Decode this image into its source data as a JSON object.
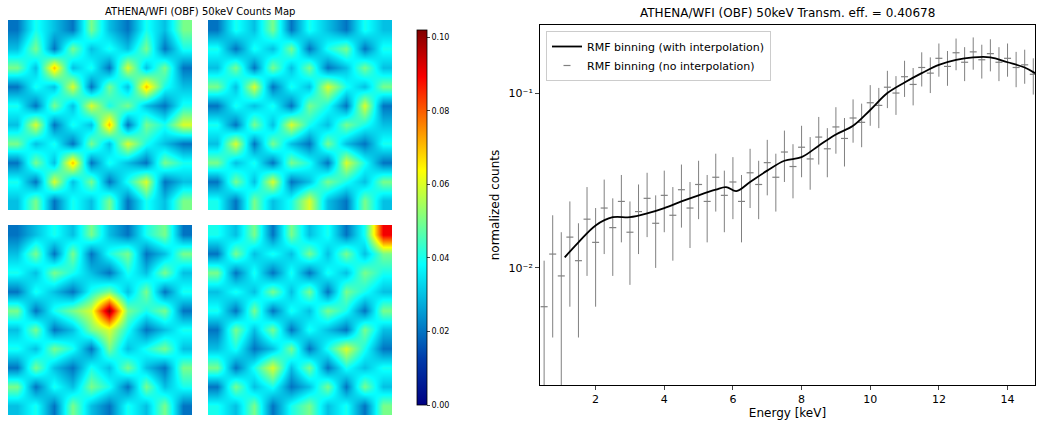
{
  "chart_data": [
    {
      "type": "heatmap",
      "title": "ATHENA/WFI (OBF) 50keV Counts Map",
      "color": "Jet",
      "tick_labels": false,
      "zlim": [
        0,
        0.102
      ],
      "colorbar_ticks": [
        {
          "value": 0,
          "label": "0.00"
        },
        {
          "value": 0.02,
          "label": "0.02"
        },
        {
          "value": 0.04,
          "label": "0.04"
        },
        {
          "value": 0.06,
          "label": "0.06"
        },
        {
          "value": 0.08,
          "label": "0.08"
        },
        {
          "value": 0.1,
          "label": "0.10"
        }
      ],
      "panels": [
        [
          [
            0.03,
            0.05,
            0.02,
            0.04,
            0.03,
            0.05,
            0.02,
            0.04,
            0.03,
            0.05
          ],
          [
            0.04,
            0.02,
            0.06,
            0.03,
            0.05,
            0.02,
            0.04,
            0.06,
            0.02,
            0.03
          ],
          [
            0.02,
            0.05,
            0.03,
            0.07,
            0.02,
            0.04,
            0.03,
            0.02,
            0.05,
            0.04
          ],
          [
            0.05,
            0.03,
            0.04,
            0.02,
            0.05,
            0.03,
            0.06,
            0.04,
            0.03,
            0.02
          ],
          [
            0.03,
            0.06,
            0.02,
            0.04,
            0.03,
            0.07,
            0.02,
            0.05,
            0.04,
            0.06
          ],
          [
            0.04,
            0.02,
            0.05,
            0.03,
            0.06,
            0.04,
            0.05,
            0.03,
            0.02,
            0.04
          ],
          [
            0.02,
            0.04,
            0.03,
            0.06,
            0.02,
            0.05,
            0.03,
            0.07,
            0.04,
            0.03
          ],
          [
            0.05,
            0.03,
            0.07,
            0.03,
            0.04,
            0.02,
            0.06,
            0.03,
            0.05,
            0.02
          ],
          [
            0.03,
            0.05,
            0.02,
            0.05,
            0.03,
            0.04,
            0.03,
            0.05,
            0.02,
            0.04
          ],
          [
            0.02,
            0.04,
            0.03,
            0.02,
            0.05,
            0.03,
            0.02,
            0.04,
            0.03,
            0.05
          ]
        ],
        [
          [
            0.04,
            0.02,
            0.05,
            0.03,
            0.04,
            0.06,
            0.03,
            0.02,
            0.05,
            0.03
          ],
          [
            0.02,
            0.05,
            0.03,
            0.06,
            0.02,
            0.03,
            0.05,
            0.04,
            0.03,
            0.05
          ],
          [
            0.05,
            0.03,
            0.04,
            0.02,
            0.05,
            0.04,
            0.02,
            0.06,
            0.04,
            0.02
          ],
          [
            0.03,
            0.06,
            0.02,
            0.05,
            0.03,
            0.02,
            0.05,
            0.03,
            0.02,
            0.04
          ],
          [
            0.04,
            0.02,
            0.05,
            0.03,
            0.06,
            0.04,
            0.03,
            0.05,
            0.04,
            0.03
          ],
          [
            0.02,
            0.04,
            0.03,
            0.04,
            0.02,
            0.05,
            0.04,
            0.02,
            0.06,
            0.02
          ],
          [
            0.05,
            0.03,
            0.06,
            0.02,
            0.04,
            0.03,
            0.06,
            0.04,
            0.03,
            0.05
          ],
          [
            0.03,
            0.05,
            0.02,
            0.05,
            0.03,
            0.05,
            0.02,
            0.03,
            0.05,
            0.03
          ],
          [
            0.04,
            0.02,
            0.04,
            0.03,
            0.05,
            0.02,
            0.04,
            0.05,
            0.02,
            0.04
          ],
          [
            0.02,
            0.04,
            0.03,
            0.05,
            0.02,
            0.04,
            0.03,
            0.02,
            0.04,
            0.03
          ]
        ],
        [
          [
            0.03,
            0.04,
            0.02,
            0.05,
            0.03,
            0.02,
            0.04,
            0.03,
            0.05,
            0.02
          ],
          [
            0.05,
            0.02,
            0.04,
            0.03,
            0.05,
            0.04,
            0.02,
            0.05,
            0.03,
            0.04
          ],
          [
            0.02,
            0.05,
            0.03,
            0.02,
            0.04,
            0.03,
            0.05,
            0.03,
            0.02,
            0.05
          ],
          [
            0.04,
            0.03,
            0.05,
            0.04,
            0.02,
            0.05,
            0.03,
            0.04,
            0.05,
            0.03
          ],
          [
            0.03,
            0.05,
            0.02,
            0.03,
            0.05,
            0.06,
            0.04,
            0.02,
            0.03,
            0.04
          ],
          [
            0.05,
            0.02,
            0.04,
            0.05,
            0.06,
            0.1,
            0.05,
            0.04,
            0.05,
            0.02
          ],
          [
            0.02,
            0.04,
            0.03,
            0.02,
            0.04,
            0.05,
            0.03,
            0.05,
            0.02,
            0.04
          ],
          [
            0.04,
            0.03,
            0.05,
            0.04,
            0.03,
            0.02,
            0.04,
            0.03,
            0.05,
            0.03
          ],
          [
            0.03,
            0.05,
            0.02,
            0.05,
            0.02,
            0.04,
            0.05,
            0.02,
            0.03,
            0.05
          ],
          [
            0.02,
            0.03,
            0.04,
            0.03,
            0.05,
            0.03,
            0.02,
            0.04,
            0.05,
            0.02
          ]
        ],
        [
          [
            0.04,
            0.03,
            0.05,
            0.02,
            0.04,
            0.05,
            0.03,
            0.04,
            0.02,
            0.05
          ],
          [
            0.02,
            0.05,
            0.03,
            0.04,
            0.02,
            0.03,
            0.05,
            0.02,
            0.05,
            0.03
          ],
          [
            0.05,
            0.02,
            0.04,
            0.06,
            0.03,
            0.05,
            0.02,
            0.04,
            0.03,
            0.04
          ],
          [
            0.03,
            0.04,
            0.02,
            0.03,
            0.05,
            0.02,
            0.04,
            0.06,
            0.04,
            0.02
          ],
          [
            0.02,
            0.05,
            0.03,
            0.05,
            0.02,
            0.04,
            0.03,
            0.02,
            0.05,
            0.03
          ],
          [
            0.04,
            0.02,
            0.05,
            0.02,
            0.04,
            0.03,
            0.05,
            0.04,
            0.02,
            0.05
          ],
          [
            0.03,
            0.04,
            0.03,
            0.05,
            0.03,
            0.05,
            0.02,
            0.05,
            0.04,
            0.03
          ],
          [
            0.05,
            0.02,
            0.04,
            0.02,
            0.04,
            0.02,
            0.04,
            0.03,
            0.05,
            0.04
          ],
          [
            0.02,
            0.05,
            0.03,
            0.04,
            0.03,
            0.05,
            0.03,
            0.05,
            0.03,
            0.05
          ],
          [
            0.04,
            0.03,
            0.05,
            0.02,
            0.05,
            0.03,
            0.04,
            0.02,
            0.04,
            0.09
          ]
        ]
      ]
    },
    {
      "type": "line",
      "title": "ATHENA/WFI (OBF) 50keV Transm. eff. = 0.40678",
      "x_label": "Energy [keV]",
      "y_label": "normalized counts",
      "log": "y",
      "legend": "upper left",
      "xlim": [
        0.38,
        14.8
      ],
      "ylim": [
        0.00214,
        0.245
      ],
      "xticks": [
        2,
        4,
        6,
        8,
        10,
        12,
        14
      ],
      "yticks": [
        {
          "value": 0.01,
          "label": "10⁻²"
        },
        {
          "value": 0.1,
          "label": "10⁻¹"
        }
      ],
      "series": [
        {
          "name": "RMF binning (with interpolation)",
          "type": "line",
          "color": "#000000",
          "line_style": "solid",
          "x": [
            1.1,
            1.5,
            2,
            2.5,
            3,
            3.5,
            4,
            4.5,
            5,
            5.5,
            5.8,
            6.1,
            6.5,
            7,
            7.5,
            8,
            8.5,
            9,
            9.5,
            10,
            10.5,
            11,
            11.5,
            12,
            12.5,
            13,
            13.5,
            14,
            14.5,
            14.8
          ],
          "values": [
            0.0115,
            0.014,
            0.0175,
            0.0195,
            0.0195,
            0.0205,
            0.022,
            0.024,
            0.026,
            0.028,
            0.029,
            0.0275,
            0.031,
            0.036,
            0.041,
            0.043,
            0.05,
            0.058,
            0.065,
            0.08,
            0.1,
            0.115,
            0.13,
            0.145,
            0.155,
            0.16,
            0.16,
            0.15,
            0.14,
            0.13
          ]
        },
        {
          "name": "RMF binning (no interpolation)",
          "type": "scatter",
          "color": "#808080",
          "marker": "cross",
          "x": [
            0.5,
            0.75,
            1.0,
            1.25,
            1.5,
            1.75,
            2.0,
            2.25,
            2.5,
            2.75,
            3.0,
            3.25,
            3.5,
            3.75,
            4.0,
            4.25,
            4.5,
            4.75,
            5.0,
            5.25,
            5.5,
            5.75,
            6.0,
            6.25,
            6.5,
            6.75,
            7.0,
            7.25,
            7.5,
            7.75,
            8.0,
            8.25,
            8.5,
            8.75,
            9.0,
            9.25,
            9.5,
            9.75,
            10.0,
            10.25,
            10.5,
            10.75,
            11.0,
            11.25,
            11.5,
            11.75,
            12.0,
            12.25,
            12.5,
            12.75,
            13.0,
            13.25,
            13.5,
            13.75,
            14.0,
            14.25,
            14.5,
            14.75
          ],
          "values": [
            0.006,
            0.012,
            0.009,
            0.015,
            0.011,
            0.019,
            0.014,
            0.022,
            0.017,
            0.024,
            0.016,
            0.021,
            0.025,
            0.018,
            0.026,
            0.02,
            0.028,
            0.022,
            0.03,
            0.024,
            0.033,
            0.026,
            0.031,
            0.024,
            0.035,
            0.03,
            0.04,
            0.033,
            0.046,
            0.038,
            0.049,
            0.042,
            0.056,
            0.048,
            0.064,
            0.055,
            0.072,
            0.068,
            0.088,
            0.085,
            0.108,
            0.1,
            0.124,
            0.112,
            0.14,
            0.13,
            0.158,
            0.142,
            0.17,
            0.15,
            0.172,
            0.155,
            0.168,
            0.15,
            0.158,
            0.14,
            0.145,
            0.128
          ],
          "errors": [
            0.005,
            0.008,
            0.007,
            0.009,
            0.007,
            0.01,
            0.008,
            0.01,
            0.008,
            0.01,
            0.008,
            0.009,
            0.01,
            0.008,
            0.01,
            0.009,
            0.011,
            0.009,
            0.011,
            0.01,
            0.012,
            0.01,
            0.012,
            0.01,
            0.013,
            0.011,
            0.014,
            0.012,
            0.015,
            0.013,
            0.016,
            0.014,
            0.017,
            0.015,
            0.019,
            0.017,
            0.02,
            0.019,
            0.023,
            0.022,
            0.026,
            0.025,
            0.029,
            0.027,
            0.031,
            0.03,
            0.034,
            0.032,
            0.035,
            0.033,
            0.036,
            0.034,
            0.035,
            0.033,
            0.034,
            0.032,
            0.032,
            0.03
          ]
        }
      ]
    }
  ]
}
